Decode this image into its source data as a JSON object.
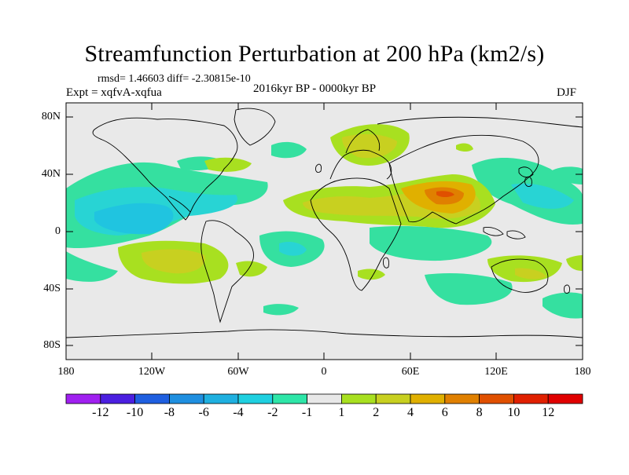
{
  "title": "Streamfunction Perturbation at 200 hPa (km2/s)",
  "stats": "rmsd= 1.46603 diff= -2.30815e-10",
  "experiment": "Expt = xqfvA-xqfua",
  "period": "2016kyr BP - 0000kyr BP",
  "season": "DJF",
  "lat_labels": [
    "80N",
    "40N",
    "0",
    "40S",
    "80S"
  ],
  "lon_labels": [
    "180",
    "120W",
    "60W",
    "0",
    "60E",
    "120E",
    "180"
  ],
  "colorbar": {
    "labels": [
      "-12",
      "-10",
      "-8",
      "-6",
      "-4",
      "-2",
      "-1",
      "1",
      "2",
      "4",
      "6",
      "8",
      "10",
      "12"
    ],
    "colors": [
      "#a020f0",
      "#4b1fe0",
      "#1f5fe0",
      "#1f8fe0",
      "#1fb0e0",
      "#1fd0e0",
      "#2ee6a8",
      "#e8e8e8",
      "#a8e020",
      "#c8d020",
      "#e0b000",
      "#e08000",
      "#e05000",
      "#e02000",
      "#e00000"
    ]
  }
}
